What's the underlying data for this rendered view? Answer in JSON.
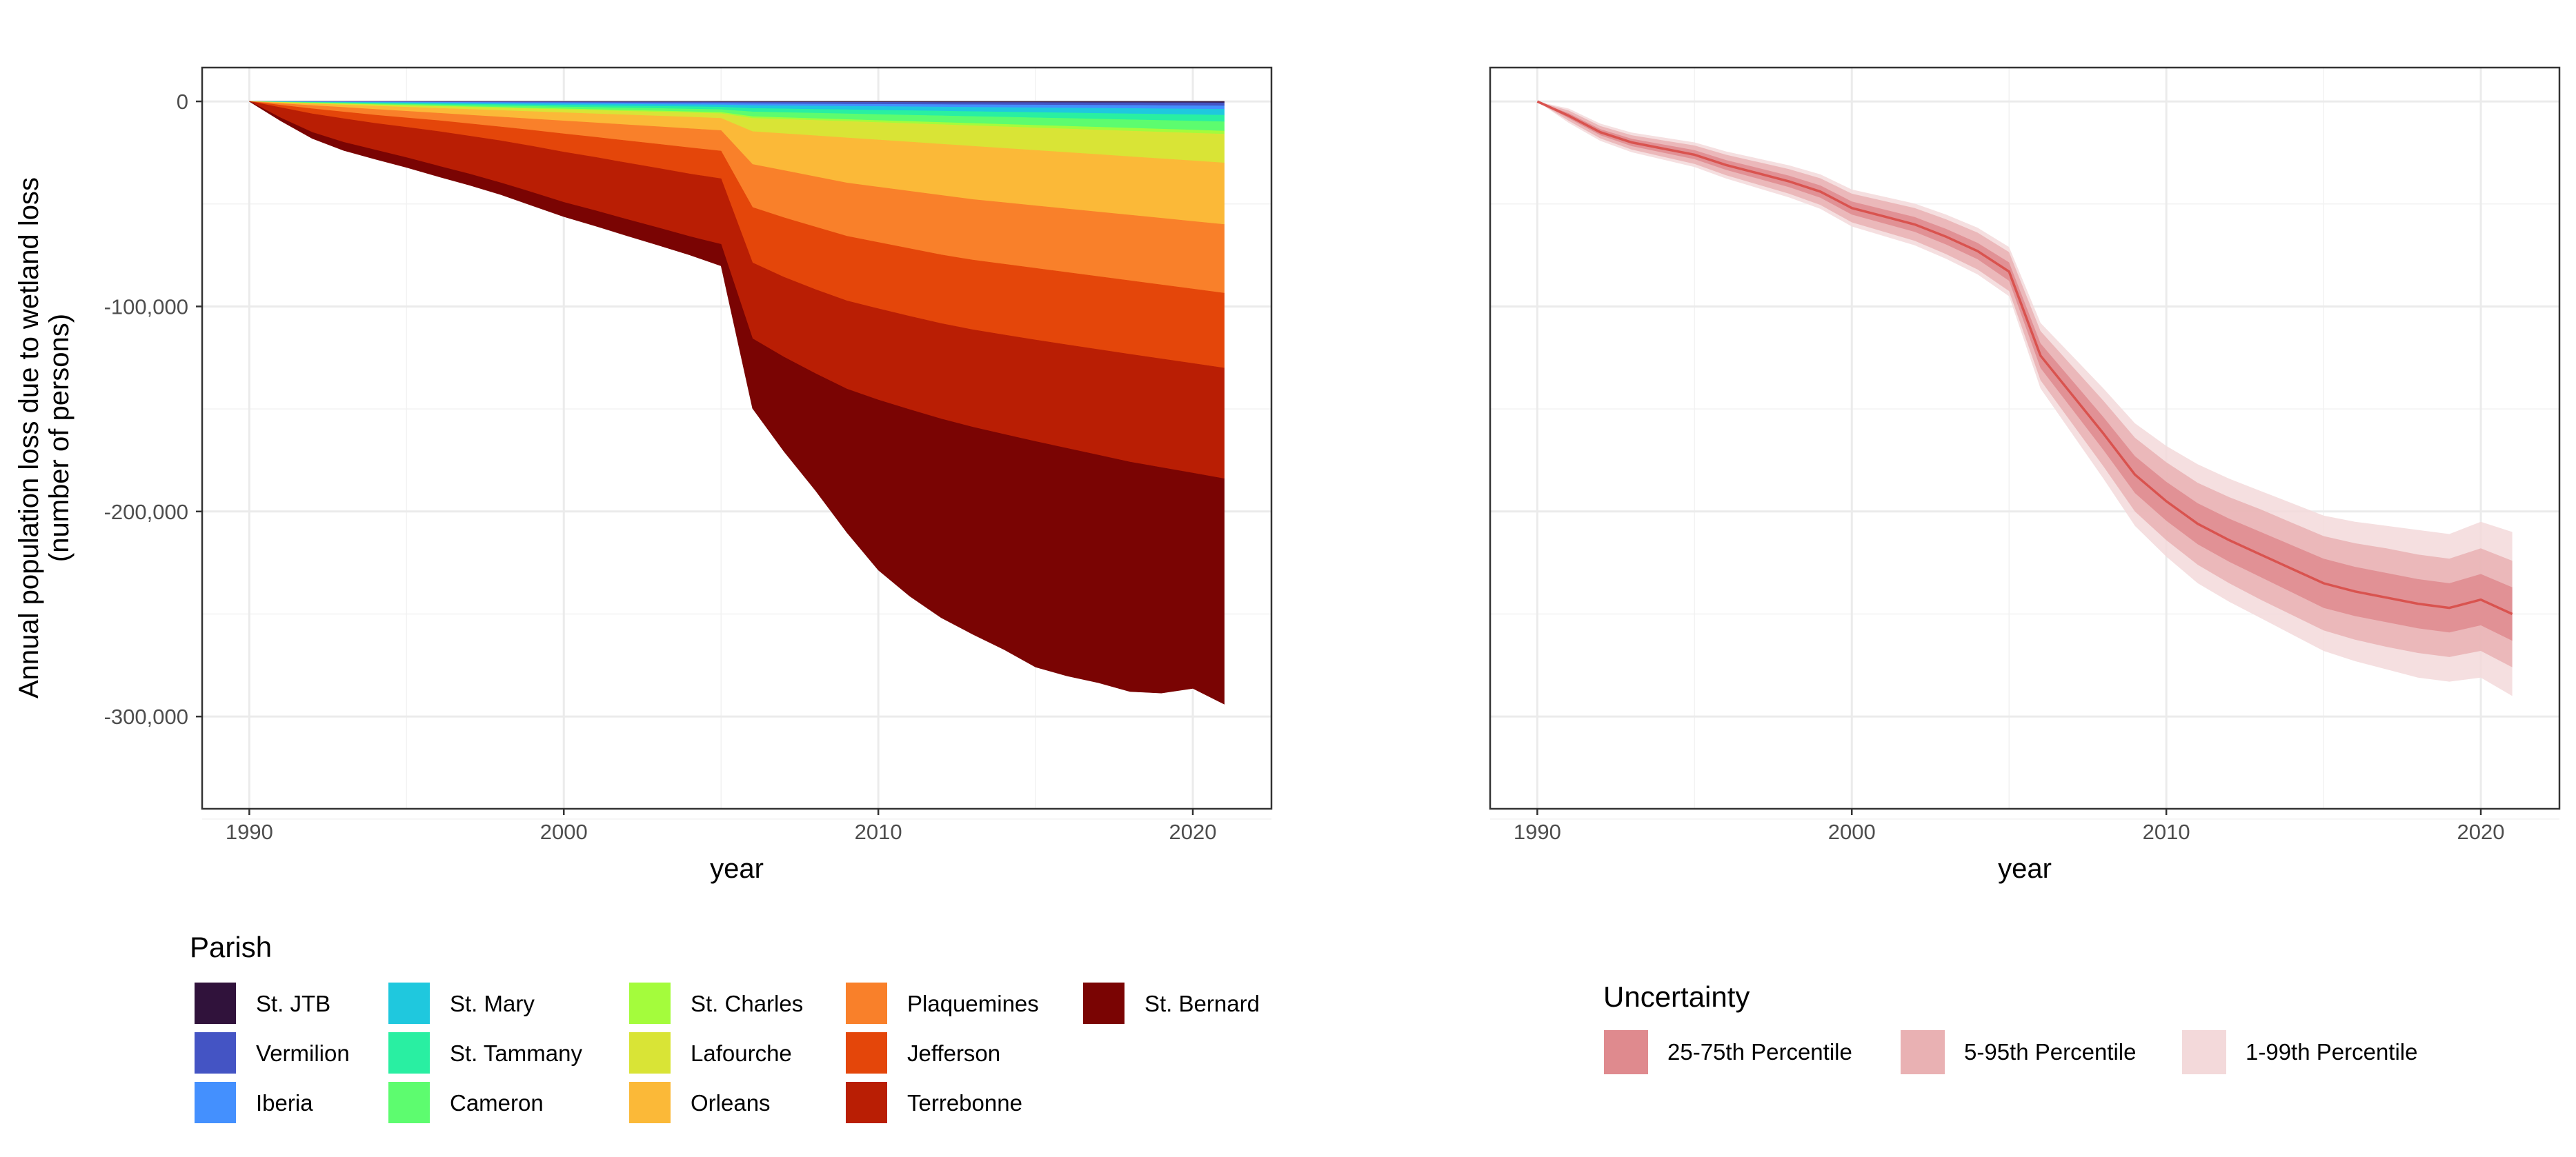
{
  "chart_data": [
    {
      "type": "area",
      "subtype": "stacked",
      "ylabel_line1": "Annual population loss due to wetland loss",
      "ylabel_line2": "(number of persons)",
      "xlabel": "year",
      "xlim": [
        1988.5,
        2022.5
      ],
      "ylim": [
        -345000,
        16500
      ],
      "x_ticks": [
        1990,
        2000,
        2010,
        2020
      ],
      "y_ticks": [
        0,
        -100000,
        -200000,
        -300000
      ],
      "y_tick_labels": [
        "0",
        "-100,000",
        "-200,000",
        "-300,000"
      ],
      "grid": true,
      "legend_title": "Parish",
      "legend_position": "bottom",
      "x": [
        1990,
        1991,
        1992,
        1993,
        1994,
        1995,
        1996,
        1997,
        1998,
        1999,
        2000,
        2001,
        2002,
        2003,
        2004,
        2005,
        2006,
        2007,
        2008,
        2009,
        2010,
        2011,
        2012,
        2013,
        2014,
        2015,
        2016,
        2017,
        2018,
        2019,
        2020,
        2021
      ],
      "series": [
        {
          "name": "St. JTB",
          "color": "#30123b",
          "values": [
            0,
            -30,
            -50,
            -70,
            -90,
            -110,
            -130,
            -150,
            -170,
            -190,
            -210,
            -230,
            -250,
            -270,
            -290,
            -310,
            -350,
            -370,
            -390,
            -410,
            -430,
            -450,
            -470,
            -490,
            -510,
            -530,
            -550,
            -570,
            -590,
            -610,
            -630,
            -650
          ]
        },
        {
          "name": "Vermilion",
          "color": "#4454c4",
          "values": [
            0,
            -60,
            -100,
            -140,
            -180,
            -220,
            -260,
            -300,
            -340,
            -380,
            -420,
            -460,
            -500,
            -540,
            -580,
            -620,
            -750,
            -800,
            -850,
            -900,
            -950,
            -1000,
            -1050,
            -1100,
            -1150,
            -1200,
            -1250,
            -1300,
            -1350,
            -1400,
            -1450,
            -1500
          ]
        },
        {
          "name": "Iberia",
          "color": "#4490fe",
          "values": [
            0,
            -70,
            -120,
            -170,
            -220,
            -270,
            -320,
            -370,
            -420,
            -470,
            -520,
            -570,
            -620,
            -670,
            -720,
            -770,
            -900,
            -950,
            -1000,
            -1050,
            -1100,
            -1150,
            -1200,
            -1250,
            -1300,
            -1350,
            -1400,
            -1450,
            -1500,
            -1550,
            -1600,
            -1650
          ]
        },
        {
          "name": "St. Mary",
          "color": "#1fc8de",
          "values": [
            0,
            -80,
            -150,
            -220,
            -290,
            -360,
            -430,
            -500,
            -570,
            -640,
            -710,
            -780,
            -850,
            -920,
            -990,
            -1060,
            -1400,
            -1500,
            -1600,
            -1700,
            -1800,
            -1900,
            -2000,
            -2100,
            -2200,
            -2300,
            -2400,
            -2500,
            -2600,
            -2700,
            -2800,
            -2900
          ]
        },
        {
          "name": "St. Tammany",
          "color": "#29efa2",
          "values": [
            0,
            -90,
            -170,
            -250,
            -330,
            -410,
            -490,
            -570,
            -650,
            -730,
            -810,
            -890,
            -970,
            -1050,
            -1130,
            -1210,
            -1700,
            -1800,
            -1900,
            -2000,
            -2100,
            -2200,
            -2300,
            -2400,
            -2500,
            -2600,
            -2700,
            -2800,
            -2900,
            -3000,
            -3100,
            -3200
          ]
        },
        {
          "name": "Cameron",
          "color": "#5dfc6f",
          "values": [
            0,
            -100,
            -190,
            -280,
            -370,
            -460,
            -550,
            -640,
            -730,
            -820,
            -910,
            -1000,
            -1090,
            -1180,
            -1270,
            -1360,
            -2300,
            -2450,
            -2600,
            -2750,
            -2900,
            -3050,
            -3200,
            -3350,
            -3500,
            -3650,
            -3800,
            -3950,
            -4100,
            -4250,
            -4400,
            -4550
          ]
        },
        {
          "name": "St. Charles",
          "color": "#a4fc3c",
          "values": [
            0,
            -60,
            -100,
            -140,
            -180,
            -220,
            -260,
            -300,
            -340,
            -380,
            -420,
            -460,
            -500,
            -540,
            -580,
            -620,
            -800,
            -850,
            -900,
            -950,
            -1000,
            -1050,
            -1100,
            -1150,
            -1200,
            -1250,
            -1300,
            -1350,
            -1400,
            -1450,
            -1500,
            -1550
          ]
        },
        {
          "name": "Lafourche",
          "color": "#d9e436",
          "values": [
            0,
            -150,
            -300,
            -450,
            -600,
            -750,
            -900,
            -1050,
            -1200,
            -1350,
            -1500,
            -1650,
            -1800,
            -1950,
            -2100,
            -2250,
            -6500,
            -7000,
            -7500,
            -8000,
            -8500,
            -9000,
            -9500,
            -10000,
            -10500,
            -11000,
            -11500,
            -12000,
            -12500,
            -13000,
            -13500,
            -14000
          ]
        },
        {
          "name": "Orleans",
          "color": "#fbb938",
          "values": [
            0,
            -400,
            -800,
            -1200,
            -1600,
            -2000,
            -2400,
            -2800,
            -3200,
            -3600,
            -4000,
            -4400,
            -4800,
            -5200,
            -5600,
            -6000,
            -16000,
            -18000,
            -20000,
            -22000,
            -23000,
            -24000,
            -25000,
            -26000,
            -26500,
            -27000,
            -27500,
            -28000,
            -28500,
            -29000,
            -29500,
            -30000
          ]
        },
        {
          "name": "Plaquemines",
          "color": "#f9802a",
          "values": [
            0,
            -800,
            -1600,
            -2200,
            -2800,
            -3200,
            -3600,
            -4200,
            -4800,
            -5500,
            -6300,
            -7000,
            -7800,
            -8500,
            -9300,
            -10000,
            -21000,
            -23000,
            -24500,
            -26000,
            -27000,
            -28000,
            -29000,
            -29500,
            -30000,
            -30500,
            -31000,
            -31500,
            -32000,
            -32500,
            -33000,
            -33500
          ]
        },
        {
          "name": "Jefferson",
          "color": "#e4460a",
          "values": [
            0,
            -1200,
            -2500,
            -3300,
            -4000,
            -4600,
            -5300,
            -6000,
            -6800,
            -7800,
            -8900,
            -9800,
            -10800,
            -11800,
            -12800,
            -13500,
            -27000,
            -29000,
            -30500,
            -31500,
            -32300,
            -33000,
            -33500,
            -34000,
            -34500,
            -35000,
            -35300,
            -35600,
            -35900,
            -36100,
            -36300,
            -36500
          ]
        },
        {
          "name": "Terrebonne",
          "color": "#b91e04",
          "values": [
            0,
            -5000,
            -9000,
            -11500,
            -13000,
            -14800,
            -16800,
            -18500,
            -20500,
            -22500,
            -24500,
            -26000,
            -27500,
            -29000,
            -30500,
            -32000,
            -37000,
            -39000,
            -41000,
            -43000,
            -44500,
            -45500,
            -46500,
            -47500,
            -48500,
            -49500,
            -50500,
            -51500,
            -52500,
            -53000,
            -53500,
            -54000
          ]
        },
        {
          "name": "St. Bernard",
          "color": "#7a0403",
          "values": [
            0,
            -1500,
            -3000,
            -4000,
            -4500,
            -4800,
            -5200,
            -5500,
            -5800,
            -6500,
            -7000,
            -7500,
            -8000,
            -8500,
            -9000,
            -10500,
            -34000,
            -46000,
            -57000,
            -70000,
            -83000,
            -91000,
            -97000,
            -101000,
            -105000,
            -110000,
            -111000,
            -111000,
            -112000,
            -110000,
            -105000,
            -110000
          ]
        }
      ]
    },
    {
      "type": "line",
      "subtype": "uncertainty-bands",
      "xlabel": "year",
      "xlim": [
        1988.5,
        2022.5
      ],
      "ylim": [
        -345000,
        16500
      ],
      "x_ticks": [
        1990,
        2000,
        2010,
        2020
      ],
      "y_ticks": [
        0,
        -100000,
        -200000,
        -300000
      ],
      "y_tick_labels_visible": false,
      "grid": true,
      "legend_title": "Uncertainty",
      "legend_position": "bottom",
      "x": [
        1990,
        1991,
        1992,
        1993,
        1994,
        1995,
        1996,
        1997,
        1998,
        1999,
        2000,
        2001,
        2002,
        2003,
        2004,
        2005,
        2006,
        2007,
        2008,
        2009,
        2010,
        2011,
        2012,
        2013,
        2014,
        2015,
        2016,
        2017,
        2018,
        2019,
        2020,
        2021
      ],
      "median": [
        0,
        -7000,
        -15000,
        -20000,
        -23000,
        -26000,
        -31000,
        -35000,
        -39000,
        -44000,
        -52000,
        -56000,
        -60000,
        -66000,
        -73000,
        -83000,
        -124000,
        -143000,
        -162000,
        -182000,
        -195000,
        -206000,
        -214000,
        -221000,
        -228000,
        -235000,
        -239000,
        -242000,
        -245000,
        -247000,
        -243000,
        -250000
      ],
      "band_halfwidths": {
        "p25_p75": [
          0,
          1200,
          1500,
          1800,
          2000,
          2200,
          2400,
          2600,
          2800,
          3000,
          3200,
          3400,
          3600,
          3800,
          4000,
          4500,
          6000,
          7000,
          8000,
          9000,
          9500,
          10000,
          10500,
          11000,
          11500,
          12000,
          12000,
          12000,
          12000,
          12000,
          12500,
          13000
        ],
        "p5_p95": [
          0,
          2500,
          3000,
          3500,
          4000,
          4500,
          5000,
          5500,
          6000,
          6500,
          7000,
          7500,
          8000,
          8500,
          9000,
          9500,
          12000,
          14000,
          16000,
          18000,
          19000,
          20000,
          21000,
          22000,
          22500,
          23000,
          23500,
          24000,
          24000,
          24000,
          25000,
          26000
        ],
        "p1_p99": [
          0,
          3500,
          4200,
          4800,
          5400,
          6000,
          6600,
          7200,
          7800,
          8400,
          9000,
          9600,
          10200,
          10800,
          11400,
          12000,
          16000,
          19000,
          22000,
          25000,
          27000,
          29000,
          30000,
          31000,
          32000,
          33000,
          34000,
          35000,
          36000,
          36000,
          38000,
          40000
        ]
      },
      "line_color": "#d9534f",
      "bands": [
        {
          "name": "25-75th Percentile",
          "key": "p25_p75",
          "color": "#df8a8e"
        },
        {
          "name": "5-95th Percentile",
          "key": "p5_p95",
          "color": "#e9b1b3"
        },
        {
          "name": "1-99th Percentile",
          "key": "p1_p99",
          "color": "#f3d9da"
        }
      ]
    }
  ]
}
